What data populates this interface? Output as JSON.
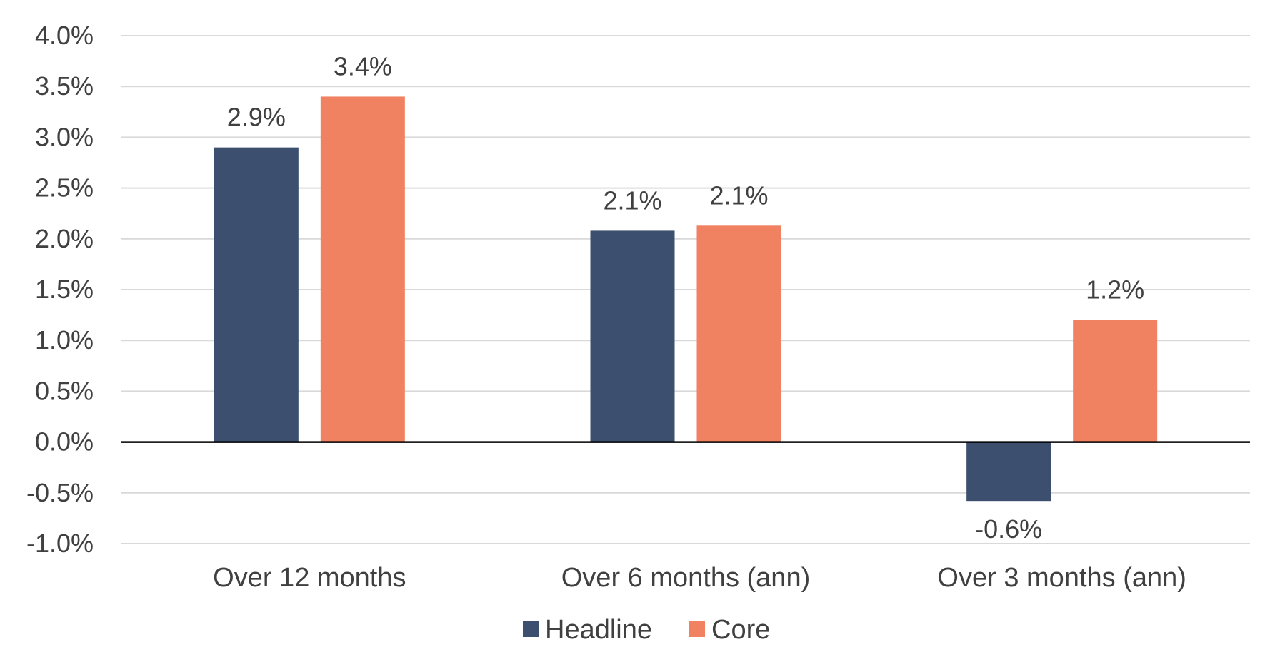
{
  "chart_data": {
    "type": "bar",
    "categories": [
      "Over 12 months",
      "Over 6 months (ann)",
      "Over 3 months (ann)"
    ],
    "series": [
      {
        "name": "Headline",
        "color": "#3D4F6E",
        "values": [
          2.9,
          2.08,
          -0.58
        ],
        "labels": [
          "2.9%",
          "2.1%",
          "-0.6%"
        ]
      },
      {
        "name": "Core",
        "color": "#F08262",
        "values": [
          3.4,
          2.13,
          1.2
        ],
        "labels": [
          "3.4%",
          "2.1%",
          "1.2%"
        ]
      }
    ],
    "ylim": [
      -1.0,
      4.0
    ],
    "yticks": [
      4.0,
      3.5,
      3.0,
      2.5,
      2.0,
      1.5,
      1.0,
      0.5,
      0.0,
      -0.5,
      -1.0
    ],
    "ytick_labels": [
      "4.0%",
      "3.5%",
      "3.0%",
      "2.5%",
      "2.0%",
      "1.5%",
      "1.0%",
      "0.5%",
      "0.0%",
      "-0.5%",
      "-1.0%"
    ],
    "title": "",
    "xlabel": "",
    "ylabel": "",
    "grid": true,
    "legend_position": "bottom",
    "gridline_color": "#D9D9D9",
    "zero_line_color": "#000000"
  }
}
